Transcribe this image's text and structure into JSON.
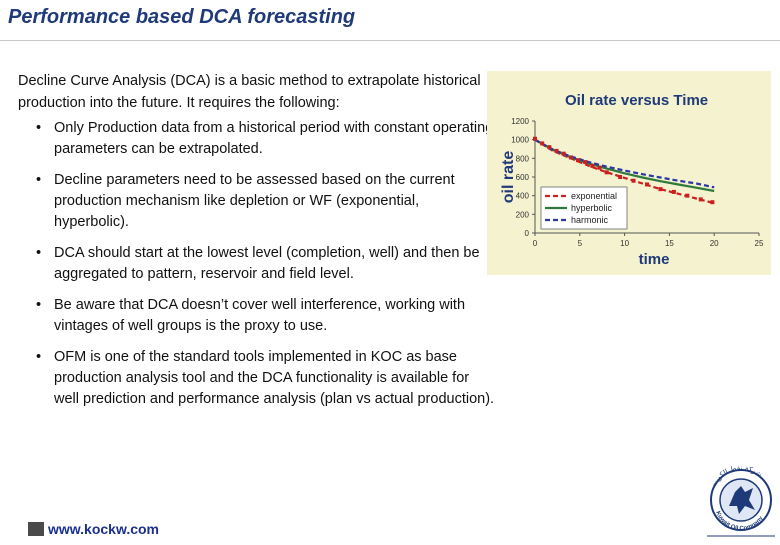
{
  "slide": {
    "title": "Performance based DCA forecasting",
    "intro": "Decline Curve Analysis (DCA) is a basic method to extrapolate historical production into the future. It requires the following:",
    "bullets": [
      "Only Production data from a historical period with constant operating parameters can be extrapolated.",
      "Decline parameters need to be assessed based on the current production mechanism like depletion or WF (exponential, hyperbolic).",
      "DCA should start at the lowest level (completion, well) and then be aggregated to pattern, reservoir and field level.",
      "Be aware that DCA doesn’t cover well interference, working with vintages of well groups is the proxy to use.",
      "OFM is one of the standard tools implemented in KOC as base production analysis tool and the DCA functionality is available for well prediction and performance analysis (plan vs actual production)."
    ],
    "footer": {
      "link": "www.kockw.com"
    },
    "colors": {
      "title": "#1f3a78",
      "chart_bg": "#f4f2cf",
      "link": "#1a2f8f"
    }
  },
  "chart_data": {
    "type": "line",
    "title": "Oil rate versus Time",
    "xlabel": "time",
    "ylabel": "oil rate",
    "xlim": [
      0,
      25
    ],
    "ylim": [
      0,
      1200
    ],
    "xticks": [
      0,
      5,
      10,
      15,
      20,
      25
    ],
    "yticks": [
      0,
      200,
      400,
      600,
      800,
      1000,
      1200
    ],
    "grid": false,
    "legend_position": "bottom-right",
    "series": [
      {
        "name": "exponential",
        "color": "#cc1f1f",
        "style": "dashed",
        "x": [
          0,
          2,
          4,
          6,
          8,
          10,
          12,
          14,
          16,
          18,
          20
        ],
        "y": [
          1000,
          880,
          800,
          720,
          650,
          590,
          530,
          470,
          420,
          370,
          320
        ]
      },
      {
        "name": "hyperbolic",
        "color": "#2f7a3a",
        "style": "solid",
        "x": [
          0,
          2,
          4,
          6,
          8,
          10,
          12,
          14,
          16,
          18,
          20
        ],
        "y": [
          1000,
          890,
          810,
          745,
          690,
          640,
          595,
          555,
          520,
          485,
          450
        ]
      },
      {
        "name": "harmonic",
        "color": "#2b37a5",
        "style": "dashed",
        "x": [
          0,
          2,
          4,
          6,
          8,
          10,
          12,
          14,
          16,
          18,
          20
        ],
        "y": [
          1000,
          895,
          820,
          760,
          710,
          670,
          630,
          595,
          560,
          530,
          490
        ]
      }
    ],
    "data_points": {
      "x": [
        0,
        0.8,
        1.6,
        2.4,
        3.2,
        4,
        4.8,
        5.6,
        6.4,
        7.2,
        8,
        9.5,
        11,
        12.5,
        14,
        15.5,
        17,
        18.5,
        19.8
      ],
      "y": [
        1010,
        960,
        920,
        880,
        850,
        810,
        780,
        760,
        720,
        700,
        650,
        600,
        560,
        520,
        470,
        440,
        400,
        360,
        330
      ],
      "color": "#cc1f1f"
    }
  },
  "logo": {
    "text": "Kuwait Oil Company",
    "arabic_text": "شركة نفط الكويت",
    "icon": "falcon-emblem-icon"
  }
}
